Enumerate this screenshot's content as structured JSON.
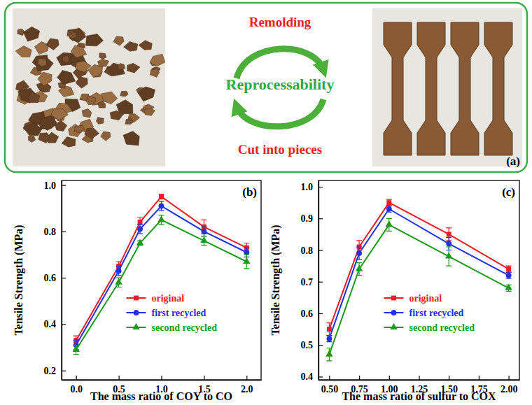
{
  "panel_a": {
    "label": "(a)",
    "top": "Remolding",
    "center": "Reprocessability",
    "bottom": "Cut into pieces"
  },
  "chart_data": [
    {
      "type": "line",
      "annotations": [
        "(b)"
      ],
      "x_label": "The mass ratio of COY to CO",
      "y_label": "Tensile Strength (MPa)",
      "x": [
        0,
        0.5,
        0.75,
        1.0,
        1.5,
        2.0
      ],
      "xlim": [
        -0.17,
        2.17
      ],
      "xticks": [
        {
          "value": 0,
          "label": "0.0"
        },
        0.5,
        {
          "value": 1,
          "label": "1.0"
        },
        1.5,
        {
          "value": 2,
          "label": "2.0"
        }
      ],
      "ylim": [
        0.16,
        1.02
      ],
      "yticks": [
        0.2,
        0.4,
        0.6,
        0.8,
        {
          "value": 1,
          "label": "1.0"
        }
      ],
      "legend": "lower center",
      "series": [
        {
          "name": "original",
          "color": "#ee1c25",
          "marker": "square",
          "values": [
            0.33,
            0.65,
            0.84,
            0.95,
            0.82,
            0.73
          ],
          "errors": [
            0.02,
            0.02,
            0.02,
            0.01,
            0.03,
            0.02
          ]
        },
        {
          "name": "first recycled",
          "color": "#1e32e6",
          "marker": "circle",
          "values": [
            0.31,
            0.63,
            0.81,
            0.91,
            0.8,
            0.71
          ],
          "errors": [
            0.02,
            0.02,
            0.02,
            0.02,
            0.02,
            0.02
          ]
        },
        {
          "name": "second recycled",
          "color": "#1a9c1a",
          "marker": "triangle",
          "values": [
            0.29,
            0.58,
            0.75,
            0.85,
            0.76,
            0.67
          ],
          "errors": [
            0.02,
            0.02,
            0.01,
            0.02,
            0.02,
            0.03
          ]
        }
      ]
    },
    {
      "type": "line",
      "annotations": [
        "(c)"
      ],
      "x_label": "The mass ratio of sulfur to COX",
      "y_label": "Tensile Strength (MPa)",
      "x": [
        0.5,
        0.75,
        1.0,
        1.5,
        2.0
      ],
      "xlim": [
        0.41,
        2.09
      ],
      "xticks": [
        {
          "value": 0.5,
          "label": "0.50"
        },
        0.75,
        {
          "value": 1,
          "label": "1.00"
        },
        1.25,
        {
          "value": 1.5,
          "label": "1.50"
        },
        1.75,
        {
          "value": 2,
          "label": "2.00"
        }
      ],
      "ylim": [
        0.39,
        1.02
      ],
      "yticks": [
        0.4,
        0.5,
        0.6,
        0.7,
        0.8,
        0.9,
        {
          "value": 1,
          "label": "1.0"
        }
      ],
      "legend": "lower center",
      "series": [
        {
          "name": "original",
          "color": "#ee1c25",
          "marker": "square",
          "values": [
            0.55,
            0.81,
            0.95,
            0.85,
            0.74
          ],
          "errors": [
            0.02,
            0.02,
            0.01,
            0.02,
            0.01
          ]
        },
        {
          "name": "first recycled",
          "color": "#1e32e6",
          "marker": "circle",
          "values": [
            0.52,
            0.79,
            0.93,
            0.82,
            0.72
          ],
          "errors": [
            0.01,
            0.02,
            0.01,
            0.02,
            0.01
          ]
        },
        {
          "name": "second recycled",
          "color": "#1a9c1a",
          "marker": "triangle",
          "values": [
            0.47,
            0.74,
            0.88,
            0.78,
            0.68
          ],
          "errors": [
            0.02,
            0.02,
            0.02,
            0.03,
            0.01
          ]
        }
      ]
    }
  ]
}
